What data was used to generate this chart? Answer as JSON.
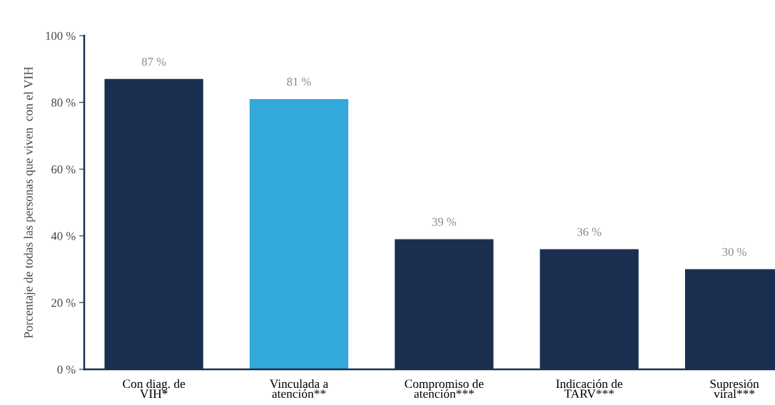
{
  "chart_data": {
    "type": "bar",
    "ylabel": "Porcentaje de todas las personas que viven  con el VIH",
    "categories": [
      "Con diag. de\nVIH*",
      "Vinculada a\natención**",
      "Compromiso de\natención***",
      "Indicación de\nTARV***",
      "Supresión\nviral***"
    ],
    "values": [
      87,
      81,
      39,
      36,
      30
    ],
    "colors": [
      "#1a2f50",
      "#33a8db",
      "#1a2f50",
      "#1a2f50",
      "#1a2f50"
    ],
    "value_labels": [
      "87 %",
      "81 %",
      "39 %",
      "36 %",
      "30 %"
    ],
    "ylim": [
      0,
      100
    ],
    "yticks": [
      {
        "value": 0,
        "label": "0 %"
      },
      {
        "value": 20,
        "label": "20 %"
      },
      {
        "value": 40,
        "label": "40 %"
      },
      {
        "value": 60,
        "label": "60 %"
      },
      {
        "value": 80,
        "label": "80 %"
      },
      {
        "value": 100,
        "label": "100 %"
      }
    ],
    "grid": false,
    "legend": false
  }
}
